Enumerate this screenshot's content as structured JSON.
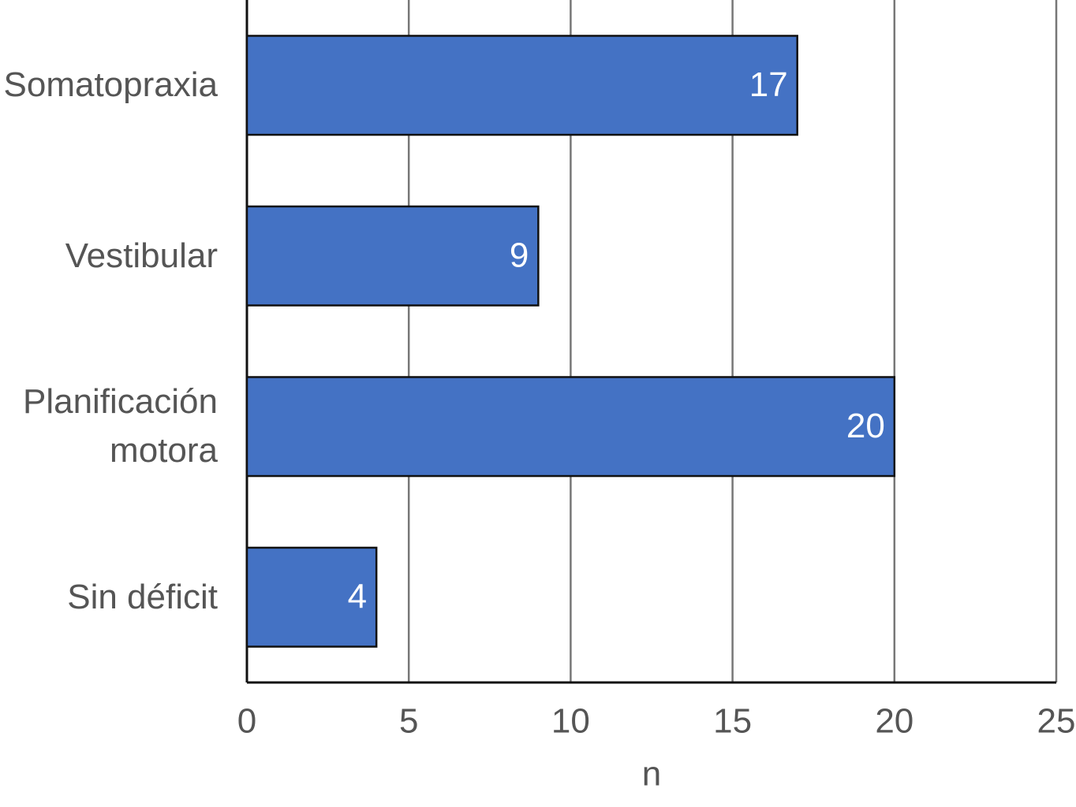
{
  "chart_data": {
    "type": "bar",
    "orientation": "horizontal",
    "categories": [
      "Somatopraxia",
      "Vestibular",
      "Planificación motora",
      "Sin déficit"
    ],
    "values": [
      17,
      9,
      20,
      4
    ],
    "color": "#4472c4",
    "xlabel": "n",
    "xlim": [
      0,
      25
    ],
    "xticks": [
      0,
      5,
      10,
      15,
      20,
      25
    ],
    "grid": true
  }
}
